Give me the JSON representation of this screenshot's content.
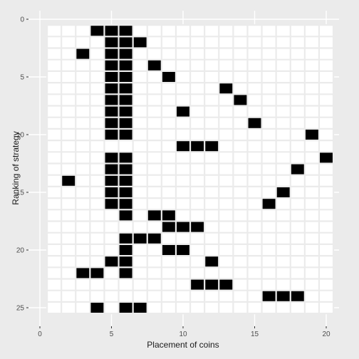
{
  "chart_data": {
    "type": "heatmap",
    "title": "",
    "xlabel": "Placement of coins",
    "ylabel": "Ranking of strategy",
    "x_ticks": [
      0,
      5,
      10,
      15,
      20
    ],
    "y_ticks": [
      0,
      5,
      10,
      15,
      20,
      25
    ],
    "xlim": [
      0,
      20.5
    ],
    "ylim": [
      0,
      25.5
    ],
    "y_reversed": true,
    "grid": true,
    "grid_x_range": [
      0.5,
      20.5
    ],
    "grid_y_range": [
      0.5,
      25.5
    ],
    "filled_color": "#000000",
    "empty_color": "#ffffff",
    "rows": [
      {
        "rank": 1,
        "coins": [
          4,
          5,
          6
        ]
      },
      {
        "rank": 2,
        "coins": [
          5,
          6,
          7
        ]
      },
      {
        "rank": 3,
        "coins": [
          3,
          5,
          6
        ]
      },
      {
        "rank": 4,
        "coins": [
          5,
          6,
          8
        ]
      },
      {
        "rank": 5,
        "coins": [
          5,
          6,
          9
        ]
      },
      {
        "rank": 6,
        "coins": [
          5,
          6,
          13
        ]
      },
      {
        "rank": 7,
        "coins": [
          5,
          6,
          14
        ]
      },
      {
        "rank": 8,
        "coins": [
          5,
          6,
          10
        ]
      },
      {
        "rank": 9,
        "coins": [
          5,
          6,
          15
        ]
      },
      {
        "rank": 10,
        "coins": [
          5,
          6,
          19
        ]
      },
      {
        "rank": 11,
        "coins": [
          10,
          11,
          12
        ]
      },
      {
        "rank": 12,
        "coins": [
          5,
          6,
          20
        ]
      },
      {
        "rank": 13,
        "coins": [
          5,
          6,
          18
        ]
      },
      {
        "rank": 14,
        "coins": [
          2,
          5,
          6
        ]
      },
      {
        "rank": 15,
        "coins": [
          5,
          6,
          17
        ]
      },
      {
        "rank": 16,
        "coins": [
          5,
          6,
          16
        ]
      },
      {
        "rank": 17,
        "coins": [
          6,
          8,
          9
        ]
      },
      {
        "rank": 18,
        "coins": [
          9,
          10,
          11
        ]
      },
      {
        "rank": 19,
        "coins": [
          6,
          7,
          8
        ]
      },
      {
        "rank": 20,
        "coins": [
          6,
          9,
          10
        ]
      },
      {
        "rank": 21,
        "coins": [
          5,
          6,
          12
        ]
      },
      {
        "rank": 22,
        "coins": [
          3,
          4,
          6
        ]
      },
      {
        "rank": 23,
        "coins": [
          11,
          12,
          13
        ]
      },
      {
        "rank": 24,
        "coins": [
          16,
          17,
          18
        ]
      },
      {
        "rank": 25,
        "coins": [
          4,
          6,
          7
        ]
      }
    ]
  }
}
